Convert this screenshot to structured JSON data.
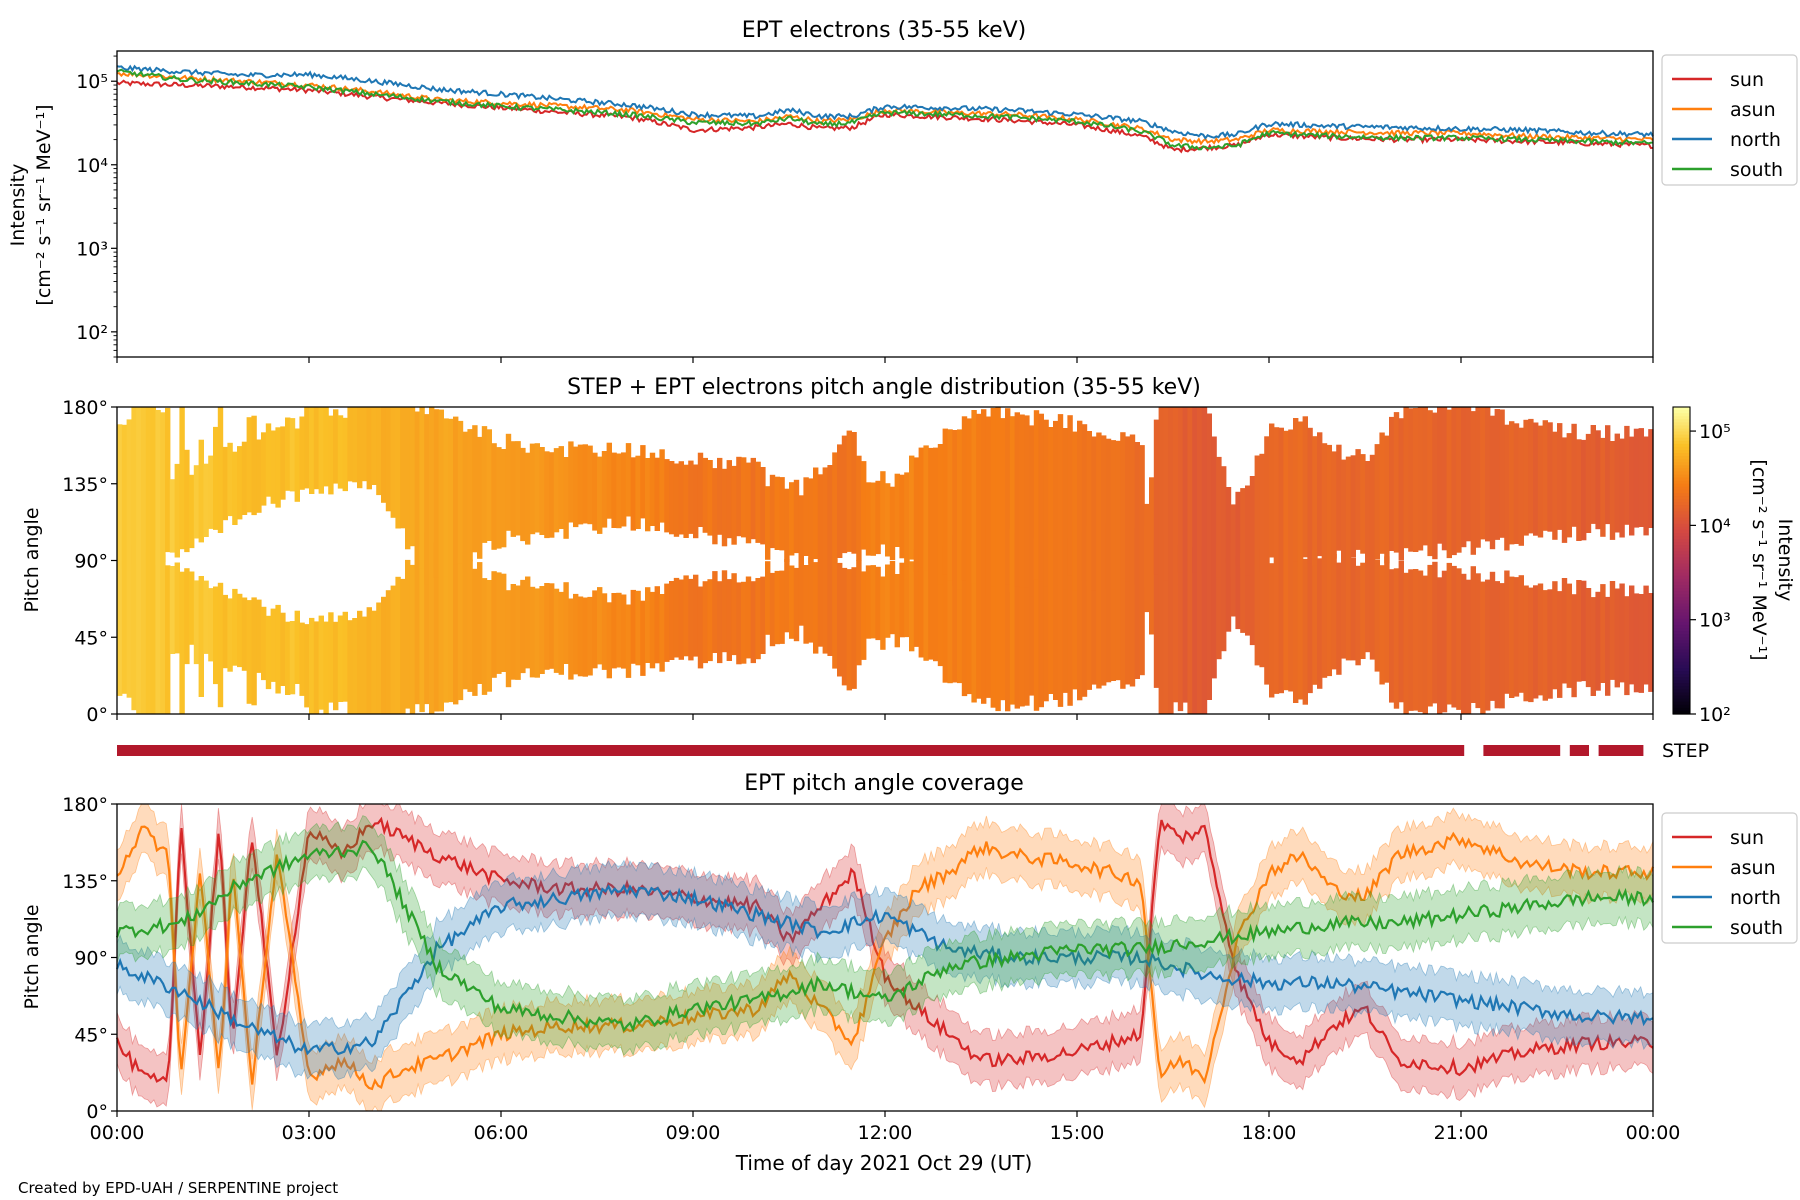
{
  "footer": "Created by EPD-UAH / SERPENTINE project",
  "colors": {
    "sun": "#d62728",
    "asun": "#ff7f0e",
    "north": "#1f77b4",
    "south": "#2ca02c",
    "step_bar": "#b2182b"
  },
  "chart_data": [
    {
      "id": "intensity",
      "type": "line",
      "title": "EPT electrons (35-55 keV)",
      "ylabel_line1": "Intensity",
      "ylabel_line2": "[cm⁻² s⁻¹ sr⁻¹ MeV⁻¹]",
      "yscale": "log",
      "ylim": [
        50,
        230000
      ],
      "yticks": [
        {
          "v": 100,
          "l": "10²"
        },
        {
          "v": 1000,
          "l": "10³"
        },
        {
          "v": 10000,
          "l": "10⁴"
        },
        {
          "v": 100000,
          "l": "10⁵"
        }
      ],
      "xlim_hours": [
        0,
        24
      ],
      "legend": "outside-right",
      "series": [
        {
          "name": "sun",
          "x": [
            0,
            1,
            2,
            3,
            4,
            5,
            6,
            7,
            8,
            9,
            10,
            10.5,
            11,
            11.5,
            12,
            13,
            14,
            15,
            16,
            16.5,
            17,
            17.5,
            18,
            19,
            20,
            21,
            22,
            23,
            24
          ],
          "y": [
            95000,
            90000,
            85000,
            78000,
            65000,
            55000,
            48000,
            42000,
            37000,
            26000,
            28000,
            31000,
            27000,
            28000,
            40000,
            37000,
            34000,
            30000,
            22000,
            15000,
            16000,
            17000,
            23000,
            21000,
            20000,
            20000,
            19000,
            18000,
            17000
          ]
        },
        {
          "name": "asun",
          "x": [
            0,
            1,
            2,
            3,
            4,
            5,
            6,
            7,
            8,
            9,
            10,
            10.5,
            11,
            11.5,
            12,
            13,
            14,
            15,
            16,
            16.5,
            17,
            17.5,
            18,
            19,
            20,
            21,
            22,
            23,
            24
          ],
          "y": [
            125000,
            110000,
            100000,
            90000,
            75000,
            60000,
            55000,
            50000,
            45000,
            35000,
            33000,
            38000,
            33000,
            35000,
            45000,
            42000,
            40000,
            35000,
            27000,
            20000,
            19000,
            20000,
            26000,
            25000,
            24000,
            24000,
            22000,
            21000,
            20000
          ]
        },
        {
          "name": "north",
          "x": [
            0,
            1,
            2,
            3,
            4,
            5,
            6,
            7,
            8,
            9,
            10,
            10.5,
            11,
            11.5,
            12,
            13,
            14,
            15,
            16,
            16.5,
            17,
            17.5,
            18,
            19,
            20,
            21,
            22,
            23,
            24
          ],
          "y": [
            145000,
            130000,
            118000,
            120000,
            100000,
            80000,
            70000,
            60000,
            52000,
            40000,
            38000,
            45000,
            38000,
            38000,
            50000,
            48000,
            45000,
            40000,
            33000,
            25000,
            22000,
            23000,
            31000,
            29000,
            28000,
            27000,
            26000,
            24000,
            23000
          ]
        },
        {
          "name": "south",
          "x": [
            0,
            1,
            2,
            3,
            4,
            5,
            6,
            7,
            8,
            9,
            10,
            10.5,
            11,
            11.5,
            12,
            13,
            14,
            15,
            16,
            16.5,
            17,
            17.5,
            18,
            19,
            20,
            21,
            22,
            23,
            24
          ],
          "y": [
            130000,
            105000,
            95000,
            85000,
            70000,
            58000,
            50000,
            45000,
            40000,
            32000,
            31000,
            36000,
            30000,
            32000,
            42000,
            40000,
            37000,
            33000,
            25000,
            17000,
            16000,
            17000,
            24000,
            22000,
            21000,
            21000,
            20000,
            19000,
            18000
          ]
        }
      ]
    },
    {
      "id": "pad",
      "type": "heatmap",
      "title": "STEP + EPT electrons pitch angle distribution (35-55 keV)",
      "ylabel": "Pitch angle",
      "ylim": [
        0,
        180
      ],
      "yticks": [
        "0°",
        "45°",
        "90°",
        "135°",
        "180°"
      ],
      "colorbar": {
        "label_line1": "Intensity",
        "label_line2": "[cm⁻² s⁻¹ sr⁻¹ MeV⁻¹]",
        "scale": "log",
        "range": [
          100,
          180000
        ],
        "ticks": [
          {
            "v": 100,
            "l": "10²"
          },
          {
            "v": 1000,
            "l": "10³"
          },
          {
            "v": 10000,
            "l": "10⁴"
          },
          {
            "v": 100000,
            "l": "10⁵"
          }
        ]
      },
      "step_label": "STEP",
      "step_coverage_hours": [
        [
          0,
          21.05
        ],
        [
          21.35,
          22.55
        ],
        [
          22.7,
          23.0
        ],
        [
          23.15,
          23.85
        ]
      ]
    },
    {
      "id": "coverage",
      "type": "line",
      "title": "EPT pitch angle coverage",
      "ylabel": "Pitch angle",
      "ylim": [
        0,
        180
      ],
      "yticks": [
        "0°",
        "45°",
        "90°",
        "135°",
        "180°"
      ],
      "xlabel": "Time of day 2021 Oct 29 (UT)",
      "xticks": [
        "00:00",
        "03:00",
        "06:00",
        "09:00",
        "12:00",
        "15:00",
        "18:00",
        "21:00",
        "00:00"
      ],
      "legend": "outside-right",
      "band_halfwidth_deg": 15,
      "series": [
        {
          "name": "sun",
          "x": [
            0,
            0.4,
            0.8,
            1.0,
            1.3,
            1.6,
            1.8,
            2.1,
            2.5,
            3.0,
            3.5,
            4.0,
            4.5,
            5.0,
            6.0,
            7.0,
            8.0,
            9.0,
            10.0,
            10.5,
            11.0,
            11.5,
            12.0,
            12.5,
            13.0,
            13.5,
            14.0,
            15.0,
            15.5,
            16.0,
            16.3,
            16.6,
            17.0,
            17.5,
            18.0,
            18.5,
            19.0,
            19.5,
            20.0,
            21.0,
            22.0,
            23.0,
            24.0
          ],
          "y": [
            40,
            20,
            15,
            170,
            30,
            170,
            35,
            165,
            30,
            165,
            150,
            170,
            160,
            150,
            135,
            130,
            130,
            125,
            120,
            100,
            120,
            140,
            80,
            60,
            45,
            30,
            30,
            35,
            40,
            45,
            170,
            160,
            165,
            80,
            40,
            30,
            50,
            60,
            30,
            25,
            35,
            40,
            40
          ]
        },
        {
          "name": "asun",
          "x": [
            0,
            0.4,
            0.8,
            1.0,
            1.3,
            1.6,
            1.8,
            2.1,
            2.5,
            3.0,
            3.5,
            4.0,
            4.5,
            5.0,
            6.0,
            7.0,
            8.0,
            9.0,
            10.0,
            10.5,
            11.0,
            11.5,
            12.0,
            12.5,
            13.0,
            13.5,
            14.0,
            15.0,
            15.5,
            16.0,
            16.3,
            16.6,
            17.0,
            17.5,
            18.0,
            18.5,
            19.0,
            19.5,
            20.0,
            21.0,
            22.0,
            23.0,
            24.0
          ],
          "y": [
            140,
            165,
            150,
            20,
            140,
            20,
            145,
            15,
            150,
            20,
            30,
            15,
            25,
            30,
            45,
            50,
            50,
            55,
            60,
            80,
            60,
            40,
            100,
            130,
            140,
            155,
            150,
            145,
            140,
            135,
            20,
            30,
            20,
            100,
            140,
            150,
            130,
            125,
            150,
            160,
            145,
            140,
            140
          ]
        },
        {
          "name": "north",
          "x": [
            0,
            1,
            2,
            3,
            4,
            5,
            6,
            7,
            8,
            9,
            10,
            11,
            12,
            13,
            14,
            15,
            16,
            17,
            18,
            19,
            20,
            21,
            22,
            23,
            24
          ],
          "y": [
            85,
            70,
            50,
            35,
            40,
            95,
            120,
            125,
            130,
            125,
            115,
            105,
            115,
            95,
            90,
            90,
            90,
            80,
            75,
            75,
            70,
            65,
            60,
            55,
            55
          ]
        },
        {
          "name": "south",
          "x": [
            0,
            1,
            2,
            3,
            4,
            5,
            6,
            7,
            8,
            9,
            10,
            11,
            12,
            13,
            14,
            15,
            16,
            17,
            18,
            19,
            20,
            21,
            22,
            23,
            24
          ],
          "y": [
            105,
            110,
            135,
            150,
            155,
            85,
            60,
            55,
            50,
            60,
            65,
            75,
            65,
            85,
            90,
            95,
            95,
            100,
            105,
            110,
            110,
            115,
            120,
            125,
            125
          ]
        }
      ]
    }
  ]
}
